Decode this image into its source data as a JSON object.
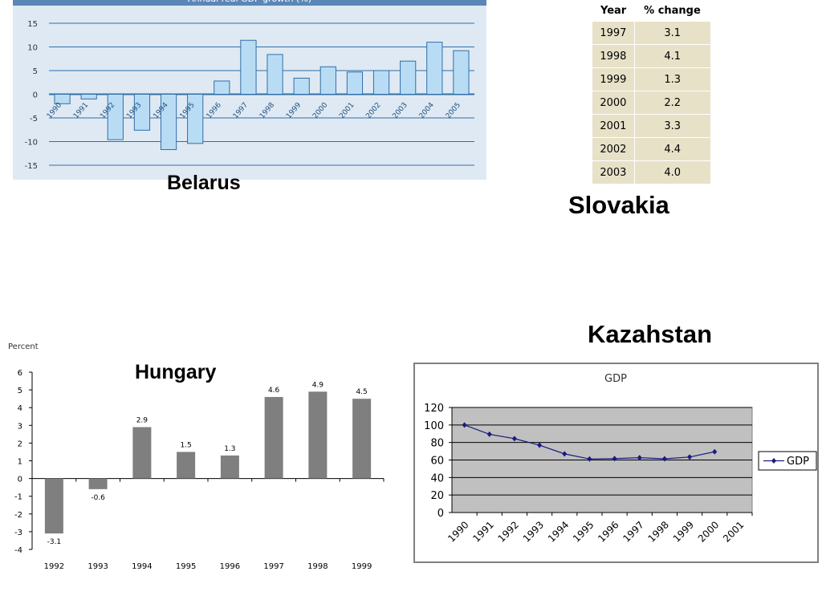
{
  "labels": {
    "belarus": "Belarus",
    "slovakia": "Slovakia",
    "kazahstan": "Kazahstan",
    "hungary": "Hungary"
  },
  "chart_data": [
    {
      "id": "belarus",
      "type": "bar",
      "title": "Annual real GDP growth (%)",
      "categories": [
        "1990",
        "1991",
        "1992",
        "1993",
        "1994",
        "1995",
        "1996",
        "1997",
        "1998",
        "1999",
        "2000",
        "2001",
        "2002",
        "2003",
        "2004",
        "2005"
      ],
      "values": [
        -2,
        -1,
        -9.6,
        -7.6,
        -11.7,
        -10.4,
        2.8,
        11.4,
        8.4,
        3.4,
        5.8,
        4.7,
        5,
        7,
        11,
        9.2
      ],
      "yticks": [
        "15",
        "10",
        "5",
        "0",
        "-5",
        "-10",
        "-15"
      ],
      "ylim": [
        -15,
        15
      ],
      "grid": true,
      "colors": {
        "bar": "#b9dcf5",
        "bar_edge": "#2f6fa8",
        "background": "#dfe9f3",
        "header": "#5b87b8"
      }
    },
    {
      "id": "slovakia",
      "type": "table",
      "columns": [
        "Year",
        "% change"
      ],
      "rows": [
        [
          "1997",
          "3.1"
        ],
        [
          "1998",
          "4.1"
        ],
        [
          "1999",
          "1.3"
        ],
        [
          "2000",
          "2.2"
        ],
        [
          "2001",
          "3.3"
        ],
        [
          "2002",
          "4.4"
        ],
        [
          "2003",
          "4.0"
        ]
      ]
    },
    {
      "id": "hungary",
      "type": "bar",
      "ylabel": "Percent",
      "categories": [
        "1992",
        "1993",
        "1994",
        "1995",
        "1996",
        "1997",
        "1998",
        "1999"
      ],
      "values": [
        -3.1,
        -0.6,
        2.9,
        1.5,
        1.3,
        4.6,
        4.9,
        4.5
      ],
      "data_labels": [
        "-3.1",
        "-0.6",
        "2.9",
        "1.5",
        "1.3",
        "4.6",
        "4.9",
        "4.5"
      ],
      "yticks": [
        "6",
        "5",
        "4",
        "3",
        "2",
        "1",
        "0",
        "-1",
        "-2",
        "-3",
        "-4"
      ],
      "ylim": [
        -4,
        6
      ],
      "colors": {
        "bar": "#7f7f7f"
      }
    },
    {
      "id": "kazahstan",
      "type": "line",
      "title": "GDP",
      "categories": [
        "1990",
        "1991",
        "1992",
        "1993",
        "1994",
        "1995",
        "1996",
        "1997",
        "1998",
        "1999",
        "2000",
        "2001"
      ],
      "series": [
        {
          "name": "GDP",
          "values": [
            100,
            89.4,
            84.4,
            76.9,
            67,
            61.2,
            61.6,
            62.6,
            61.4,
            63.4,
            69.4,
            null
          ]
        }
      ],
      "yticks": [
        "120",
        "100",
        "80",
        "60",
        "40",
        "20",
        "0"
      ],
      "ylim": [
        0,
        120
      ],
      "grid": true,
      "legend": "right",
      "colors": {
        "line": "#1a1a80",
        "plot_bg": "#c0c0c0",
        "frame": "#808080"
      }
    }
  ]
}
